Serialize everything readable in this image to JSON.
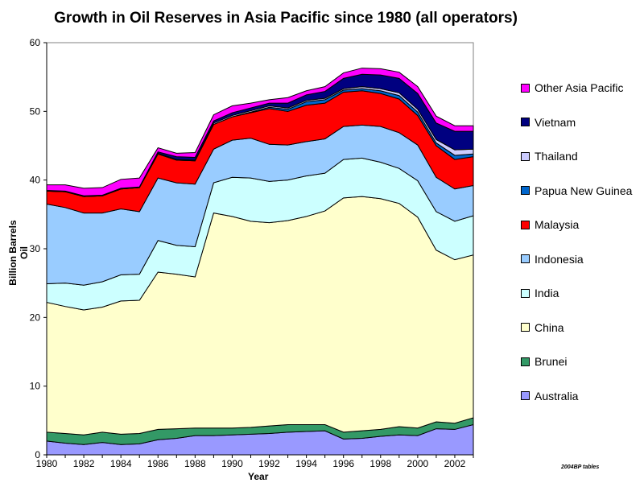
{
  "chart_data": {
    "type": "area",
    "stacked": true,
    "title": "Growth in Oil Reserves in Asia Pacific since 1980 (all operators)",
    "xlabel": "Year",
    "ylabel": "Billion Barrels Oil",
    "source_note": "2004BP tables",
    "xlim": [
      1980,
      2003
    ],
    "ylim": [
      0,
      60
    ],
    "yticks": [
      0,
      10,
      20,
      30,
      40,
      50,
      60
    ],
    "xticks": [
      1980,
      1982,
      1984,
      1986,
      1988,
      1990,
      1992,
      1994,
      1996,
      1998,
      2000,
      2002
    ],
    "grid": false,
    "legend_position": "right",
    "x": [
      1980,
      1981,
      1982,
      1983,
      1984,
      1985,
      1986,
      1987,
      1988,
      1989,
      1990,
      1991,
      1992,
      1993,
      1994,
      1995,
      1996,
      1997,
      1998,
      1999,
      2000,
      2001,
      2002,
      2003
    ],
    "series": [
      {
        "name": "Australia",
        "color": "#9999FF",
        "values": [
          2.0,
          1.7,
          1.5,
          1.8,
          1.5,
          1.6,
          2.2,
          2.4,
          2.8,
          2.8,
          2.9,
          3.0,
          3.1,
          3.3,
          3.4,
          3.5,
          2.3,
          2.4,
          2.7,
          2.9,
          2.8,
          3.8,
          3.7,
          4.4
        ]
      },
      {
        "name": "Brunei",
        "color": "#339966",
        "values": [
          1.3,
          1.4,
          1.4,
          1.5,
          1.5,
          1.5,
          1.5,
          1.4,
          1.1,
          1.1,
          1.0,
          1.0,
          1.1,
          1.1,
          1.0,
          0.9,
          1.0,
          1.1,
          1.0,
          1.2,
          1.1,
          1.0,
          0.9,
          1.0
        ]
      },
      {
        "name": "China",
        "color": "#FFFFCC",
        "values": [
          18.9,
          18.5,
          18.2,
          18.2,
          19.4,
          19.4,
          22.9,
          22.5,
          22.0,
          31.3,
          30.8,
          30.0,
          29.6,
          29.7,
          30.3,
          31.1,
          34.1,
          34.1,
          33.6,
          32.5,
          30.7,
          25.0,
          23.8,
          23.7
        ]
      },
      {
        "name": "India",
        "color": "#CCFFFF",
        "values": [
          2.7,
          3.4,
          3.6,
          3.7,
          3.8,
          3.8,
          4.6,
          4.2,
          4.4,
          4.4,
          5.7,
          6.3,
          6.0,
          5.9,
          5.9,
          5.5,
          5.6,
          5.6,
          5.3,
          5.1,
          5.3,
          5.6,
          5.6,
          5.7
        ]
      },
      {
        "name": "Indonesia",
        "color": "#99CCFF",
        "values": [
          11.6,
          11.0,
          10.5,
          10.0,
          9.6,
          9.1,
          9.1,
          9.1,
          9.1,
          4.9,
          5.4,
          5.8,
          5.4,
          5.1,
          5.0,
          5.0,
          4.8,
          4.8,
          5.2,
          5.2,
          5.2,
          5.0,
          4.7,
          4.4
        ]
      },
      {
        "name": "Malaysia",
        "color": "#FF0000",
        "values": [
          1.9,
          2.3,
          2.4,
          2.5,
          2.9,
          3.5,
          3.5,
          3.3,
          3.4,
          3.6,
          3.4,
          3.7,
          5.2,
          4.9,
          5.3,
          5.2,
          5.0,
          5.0,
          4.8,
          4.9,
          4.3,
          4.6,
          4.3,
          4.2
        ]
      },
      {
        "name": "Papua New Guinea",
        "color": "#0066CC",
        "values": [
          0,
          0,
          0,
          0,
          0,
          0,
          0,
          0,
          0,
          0,
          0,
          0.1,
          0.2,
          0.3,
          0.5,
          0.5,
          0.3,
          0.3,
          0.4,
          0.5,
          0.5,
          0.4,
          0.6,
          0.4
        ]
      },
      {
        "name": "Thailand",
        "color": "#CCCCFF",
        "values": [
          0,
          0,
          0,
          0,
          0,
          0,
          0.1,
          0.1,
          0.1,
          0.2,
          0.2,
          0.2,
          0.2,
          0.2,
          0.2,
          0.2,
          0.2,
          0.3,
          0.3,
          0.4,
          0.4,
          0.5,
          0.8,
          0.7
        ]
      },
      {
        "name": "Vietnam",
        "color": "#000080",
        "values": [
          0.1,
          0.1,
          0.1,
          0.1,
          0.1,
          0.1,
          0.2,
          0.4,
          0.4,
          0.3,
          0.4,
          0.4,
          0.4,
          0.7,
          0.8,
          1.0,
          1.5,
          1.8,
          2.0,
          2.1,
          2.3,
          2.4,
          2.7,
          2.6
        ]
      },
      {
        "name": "Other Asia Pacific",
        "color": "#FF00FF",
        "values": [
          0.8,
          0.9,
          1.1,
          1.1,
          1.3,
          1.3,
          0.6,
          0.5,
          0.7,
          0.9,
          1.0,
          0.7,
          0.5,
          0.8,
          0.6,
          0.7,
          0.8,
          0.9,
          0.9,
          0.9,
          1.0,
          1.0,
          0.8,
          0.8
        ]
      }
    ]
  }
}
